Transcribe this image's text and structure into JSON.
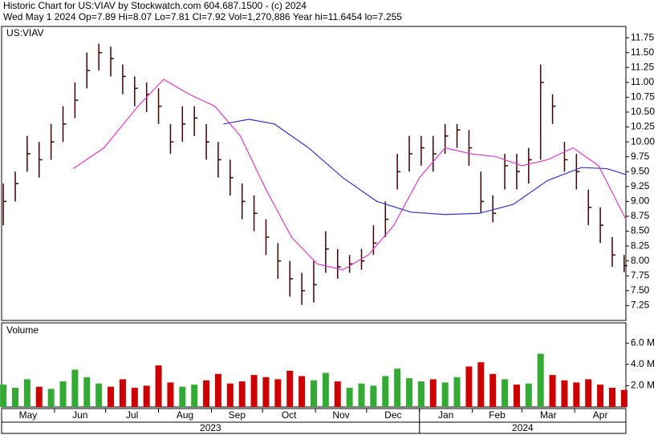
{
  "chart_data": {
    "type": "ohlc",
    "title": "Historic Chart for US:VIAV by Stockwatch.com 604.687.1500 - (c) 2024",
    "subtitle": "Wed May  1 2024  Op=7.89  Hi=8.07  Lo=7.81  Cl=7.92  Vol=1,270,886  Year hi=11.6454  lo=7.255",
    "symbol": "US:VIAV",
    "volume_label": "Volume",
    "xlim": [
      0,
      366
    ],
    "xticks": [
      {
        "value": 0,
        "label": "May"
      },
      {
        "value": 31,
        "label": "Jun"
      },
      {
        "value": 61,
        "label": "Jul"
      },
      {
        "value": 92,
        "label": "Aug"
      },
      {
        "value": 123,
        "label": "Sep"
      },
      {
        "value": 153,
        "label": "Oct"
      },
      {
        "value": 184,
        "label": "Nov"
      },
      {
        "value": 214,
        "label": "Dec"
      },
      {
        "value": 245,
        "label": "Jan"
      },
      {
        "value": 276,
        "label": "Feb"
      },
      {
        "value": 305,
        "label": "Mar"
      },
      {
        "value": 336,
        "label": "Apr"
      }
    ],
    "years": [
      {
        "value": 0,
        "label": "2023"
      },
      {
        "value": 245,
        "label": "2024"
      }
    ],
    "ylim": [
      7.0,
      11.94
    ],
    "yticks": [
      7.25,
      {
        "value": 7.5,
        "label": "7.50"
      },
      7.75,
      {
        "value": 8,
        "label": "8.00"
      },
      8.25,
      {
        "value": 8.5,
        "label": "8.50"
      },
      8.75,
      {
        "value": 9,
        "label": "9.00"
      },
      9.25,
      {
        "value": 9.5,
        "label": "9.50"
      },
      9.75,
      {
        "value": 10,
        "label": "10.00"
      },
      10.25,
      {
        "value": 10.5,
        "label": "10.50"
      },
      10.75,
      {
        "value": 11,
        "label": "11.00"
      },
      11.25,
      {
        "value": 11.5,
        "label": "11.50"
      },
      11.75
    ],
    "vol_ylim": [
      0,
      7.9
    ],
    "vol_yticks": [
      {
        "value": 2,
        "label": "2.0 M"
      },
      {
        "value": 4,
        "label": "4.0 M"
      },
      {
        "value": 6,
        "label": "6.0 M"
      }
    ],
    "bar_color": "#400000",
    "up_color": "#33aa33",
    "down_color": "#cc0000",
    "x": [
      1,
      8,
      15,
      22,
      29,
      36,
      43,
      50,
      57,
      64,
      71,
      78,
      85,
      92,
      99,
      106,
      113,
      120,
      127,
      134,
      141,
      148,
      155,
      162,
      169,
      176,
      183,
      190,
      197,
      204,
      211,
      218,
      225,
      232,
      239,
      246,
      253,
      260,
      267,
      274,
      281,
      288,
      295,
      302,
      309,
      316,
      323,
      330,
      337,
      344,
      351,
      358,
      365
    ],
    "high": [
      9.3,
      9.5,
      10.1,
      10.0,
      10.3,
      10.6,
      11.0,
      11.5,
      11.65,
      11.6,
      11.3,
      11.1,
      11.0,
      10.9,
      10.3,
      10.6,
      10.6,
      10.3,
      10.0,
      9.7,
      9.3,
      9.1,
      8.7,
      8.3,
      8.0,
      7.8,
      8.0,
      8.5,
      8.2,
      8.1,
      8.2,
      8.6,
      9.0,
      9.8,
      10.1,
      10.1,
      10.1,
      10.3,
      10.3,
      10.2,
      9.5,
      9.1,
      9.8,
      9.8,
      9.9,
      11.3,
      10.8,
      10.0,
      9.8,
      9.2,
      8.9,
      8.4,
      8.1
    ],
    "low": [
      8.6,
      9.0,
      9.5,
      9.4,
      9.7,
      10.0,
      10.4,
      10.9,
      11.2,
      11.1,
      10.8,
      10.6,
      10.5,
      10.3,
      9.8,
      10.0,
      10.1,
      9.7,
      9.4,
      9.1,
      8.7,
      8.5,
      8.1,
      7.7,
      7.4,
      7.26,
      7.3,
      7.8,
      7.7,
      7.8,
      7.85,
      8.1,
      8.4,
      9.2,
      9.5,
      9.6,
      9.5,
      9.8,
      9.9,
      9.6,
      8.8,
      8.65,
      9.2,
      9.2,
      9.3,
      9.7,
      10.3,
      9.5,
      9.2,
      8.6,
      8.3,
      7.9,
      7.81
    ],
    "close": [
      9.0,
      9.3,
      9.8,
      9.7,
      10.0,
      10.3,
      10.7,
      11.2,
      11.5,
      11.4,
      11.1,
      10.9,
      10.8,
      10.6,
      10.0,
      10.3,
      10.4,
      10.0,
      9.7,
      9.4,
      9.0,
      8.8,
      8.4,
      8.0,
      7.7,
      7.5,
      7.6,
      8.2,
      7.9,
      7.95,
      8.0,
      8.3,
      8.7,
      9.5,
      9.8,
      9.9,
      9.8,
      10.1,
      10.2,
      9.9,
      9.0,
      8.8,
      9.6,
      9.5,
      9.7,
      11.0,
      10.6,
      9.7,
      9.5,
      8.9,
      8.6,
      8.1,
      7.92
    ],
    "volume": [
      2.1,
      1.8,
      2.6,
      1.9,
      1.7,
      2.4,
      3.5,
      2.8,
      2.2,
      1.9,
      2.6,
      1.8,
      2.0,
      3.9,
      2.3,
      1.9,
      2.1,
      2.5,
      3.1,
      2.2,
      2.4,
      3.0,
      2.8,
      2.6,
      3.4,
      2.9,
      2.5,
      3.2,
      2.4,
      1.8,
      2.2,
      2.0,
      2.9,
      3.6,
      2.7,
      2.4,
      2.6,
      2.3,
      2.8,
      3.8,
      4.2,
      3.1,
      2.6,
      2.1,
      2.2,
      5.0,
      3.0,
      2.5,
      2.3,
      2.6,
      2.1,
      1.8,
      1.6
    ],
    "ma_short": {
      "color": "#e03cc8",
      "x": [
        42,
        60,
        80,
        95,
        110,
        125,
        140,
        155,
        170,
        185,
        200,
        215,
        230,
        245,
        260,
        275,
        290,
        305,
        320,
        335,
        350,
        366
      ],
      "values": [
        9.55,
        9.9,
        10.6,
        11.05,
        10.8,
        10.6,
        10.1,
        9.2,
        8.4,
        7.95,
        7.85,
        8.1,
        8.6,
        9.4,
        9.9,
        9.8,
        9.75,
        9.6,
        9.7,
        9.9,
        9.6,
        8.7
      ]
    },
    "ma_long": {
      "color": "#3333cc",
      "x": [
        130,
        145,
        160,
        180,
        200,
        220,
        240,
        260,
        280,
        300,
        320,
        340,
        355,
        366
      ],
      "values": [
        10.3,
        10.38,
        10.3,
        9.9,
        9.4,
        9.0,
        8.82,
        8.78,
        8.8,
        8.95,
        9.35,
        9.57,
        9.55,
        9.45
      ]
    }
  }
}
